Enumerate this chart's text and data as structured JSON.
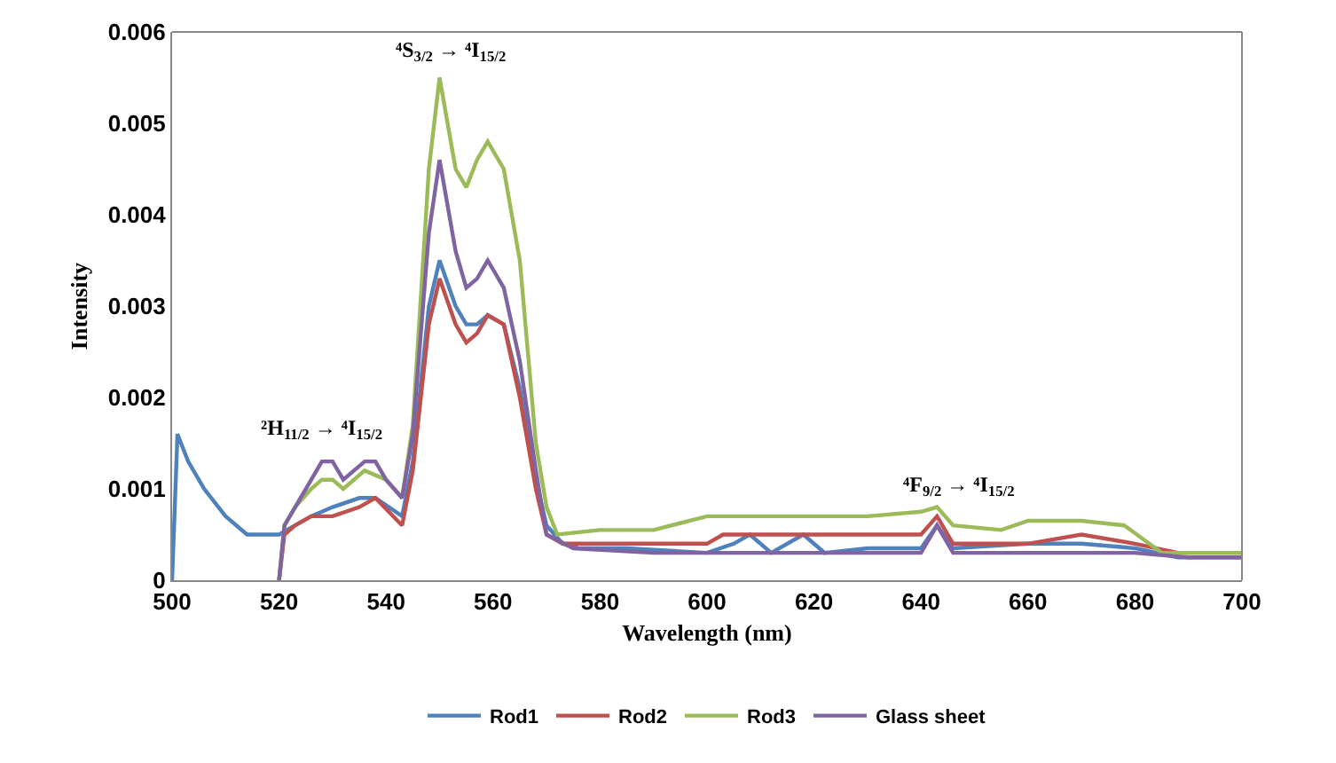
{
  "chart_data": {
    "type": "line",
    "xlabel": "Wavelength (nm)",
    "ylabel": "Intensity",
    "xlim": [
      500,
      700
    ],
    "xticks": [
      500,
      520,
      540,
      560,
      580,
      600,
      620,
      640,
      660,
      680,
      700
    ],
    "ylim": [
      0,
      0.006
    ],
    "yticks": [
      {
        "value": 0,
        "label": "0"
      },
      0.001,
      0.002,
      0.003,
      0.004,
      0.005,
      0.006
    ],
    "grid": false,
    "legend": "bottom",
    "marker": "none",
    "line_style": "solid",
    "annotations": [
      "²H$_{11/2}$ → ⁴I$_{15/2}$",
      "⁴S$_{3/2}$ → ⁴I$_{15/2}$",
      "⁴F$_{9/2}$ → ⁴I$_{15/2}$"
    ],
    "series": [
      {
        "name": "Rod1",
        "color": "#4f81bd",
        "x": [
          500,
          501,
          503,
          506,
          510,
          514,
          520,
          523,
          526,
          530,
          535,
          538,
          543,
          545,
          548,
          550,
          553,
          555,
          557,
          559,
          562,
          565,
          568,
          570,
          573,
          576,
          585,
          600,
          605,
          608,
          612,
          618,
          622,
          630,
          640,
          643,
          646,
          660,
          670,
          680,
          688,
          700
        ],
        "values": [
          0,
          0.0016,
          0.0013,
          0.001,
          0.0007,
          0.0005,
          0.0005,
          0.0006,
          0.0007,
          0.0008,
          0.0009,
          0.0009,
          0.0007,
          0.0013,
          0.003,
          0.0035,
          0.003,
          0.0028,
          0.0028,
          0.0029,
          0.0028,
          0.0021,
          0.0011,
          0.0006,
          0.0004,
          0.00035,
          0.00035,
          0.0003,
          0.0004,
          0.0005,
          0.0003,
          0.0005,
          0.0003,
          0.00035,
          0.00035,
          0.0006,
          0.00035,
          0.0004,
          0.0004,
          0.00035,
          0.00025,
          0.00025
        ]
      },
      {
        "name": "Rod2",
        "color": "#c0504d",
        "x": [
          520,
          521,
          523,
          526,
          530,
          535,
          538,
          543,
          545,
          548,
          550,
          553,
          555,
          557,
          559,
          562,
          565,
          568,
          570,
          573,
          576,
          585,
          600,
          603,
          620,
          640,
          643,
          646,
          660,
          670,
          680,
          688,
          700
        ],
        "values": [
          0,
          0.0005,
          0.0006,
          0.0007,
          0.0007,
          0.0008,
          0.0009,
          0.0006,
          0.0012,
          0.0028,
          0.0033,
          0.0028,
          0.0026,
          0.0027,
          0.0029,
          0.0028,
          0.002,
          0.001,
          0.0005,
          0.0004,
          0.0004,
          0.0004,
          0.0004,
          0.0005,
          0.0005,
          0.0005,
          0.0007,
          0.0004,
          0.0004,
          0.0005,
          0.0004,
          0.0003,
          0.0003
        ]
      },
      {
        "name": "Rod3",
        "color": "#9bbb59",
        "x": [
          520,
          521,
          523,
          526,
          528,
          530,
          532,
          536,
          540,
          543,
          545,
          548,
          550,
          553,
          555,
          557,
          559,
          562,
          565,
          568,
          570,
          572,
          580,
          590,
          600,
          620,
          630,
          640,
          643,
          646,
          655,
          660,
          670,
          678,
          685,
          690,
          700
        ],
        "values": [
          0,
          0.0006,
          0.0008,
          0.001,
          0.0011,
          0.0011,
          0.001,
          0.0012,
          0.0011,
          0.0009,
          0.0017,
          0.0045,
          0.0055,
          0.0045,
          0.0043,
          0.0046,
          0.0048,
          0.0045,
          0.0035,
          0.0015,
          0.0008,
          0.0005,
          0.00055,
          0.00055,
          0.0007,
          0.0007,
          0.0007,
          0.00075,
          0.0008,
          0.0006,
          0.00055,
          0.00065,
          0.00065,
          0.0006,
          0.0003,
          0.0003,
          0.0003
        ]
      },
      {
        "name": "Glass sheet",
        "color": "#8064a2",
        "x": [
          520,
          521,
          524,
          528,
          530,
          532,
          536,
          538,
          540,
          543,
          545,
          548,
          550,
          553,
          555,
          557,
          559,
          562,
          565,
          568,
          570,
          575,
          590,
          610,
          630,
          640,
          643,
          646,
          660,
          680,
          690,
          700
        ],
        "values": [
          0,
          0.0006,
          0.0009,
          0.0013,
          0.0013,
          0.0011,
          0.0013,
          0.0013,
          0.0011,
          0.0009,
          0.0016,
          0.0038,
          0.0046,
          0.0036,
          0.0032,
          0.0033,
          0.0035,
          0.0032,
          0.0024,
          0.0012,
          0.0005,
          0.00035,
          0.0003,
          0.0003,
          0.0003,
          0.0003,
          0.0006,
          0.0003,
          0.0003,
          0.0003,
          0.00025,
          0.00025
        ]
      }
    ]
  }
}
